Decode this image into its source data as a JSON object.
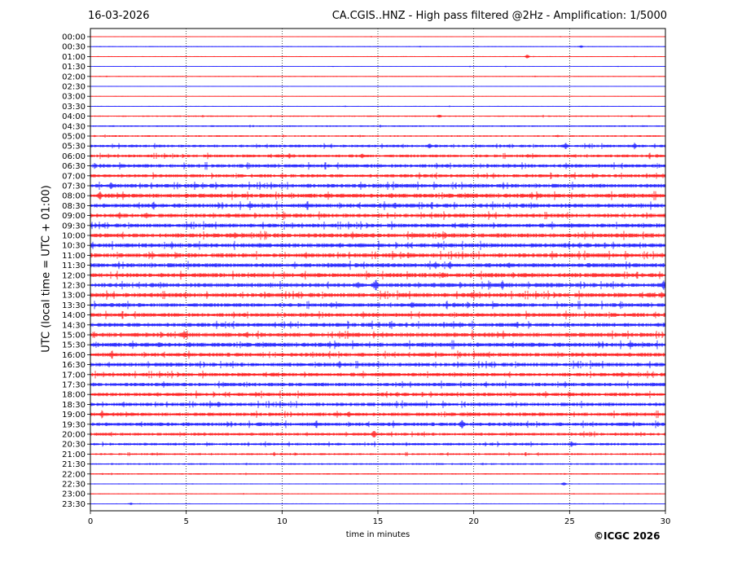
{
  "header": {
    "date": "16-03-2026",
    "title": "CA.CGIS..HNZ - High pass filtered @2Hz - Amplification: 1/5000"
  },
  "footer": {
    "copyright": "©ICGC 2026"
  },
  "chart_data": {
    "type": "line",
    "subtype": "helicorder",
    "title": "CA.CGIS..HNZ - High pass filtered @2Hz - Amplification: 1/5000",
    "xlabel": "time in minutes",
    "ylabel": "UTC (local time = UTC + 01:00)",
    "xlim": [
      0,
      30
    ],
    "x_ticks": [
      0,
      5,
      10,
      15,
      20,
      25,
      30
    ],
    "x_gridlines": [
      5,
      10,
      15,
      20,
      25
    ],
    "row_labels": [
      "00:00",
      "00:30",
      "01:00",
      "01:30",
      "02:00",
      "02:30",
      "03:00",
      "03:30",
      "04:00",
      "04:30",
      "05:00",
      "05:30",
      "06:00",
      "06:30",
      "07:00",
      "07:30",
      "08:00",
      "08:30",
      "09:00",
      "09:30",
      "10:00",
      "10:30",
      "11:00",
      "11:30",
      "12:00",
      "12:30",
      "13:00",
      "13:30",
      "14:00",
      "14:30",
      "15:00",
      "15:30",
      "16:00",
      "16:30",
      "17:00",
      "17:30",
      "18:00",
      "18:30",
      "19:00",
      "19:30",
      "20:00",
      "20:30",
      "21:00",
      "21:30",
      "22:00",
      "22:30",
      "23:00",
      "23:30"
    ],
    "trace_colors": [
      "#ff0000",
      "#0000ff"
    ],
    "noise_level": [
      0.4,
      0.5,
      0.5,
      0.4,
      0.5,
      0.4,
      0.4,
      0.5,
      0.8,
      0.9,
      1.0,
      1.6,
      1.8,
      2.2,
      2.0,
      2.4,
      2.6,
      2.6,
      2.4,
      2.4,
      2.6,
      2.6,
      2.6,
      2.6,
      2.6,
      2.6,
      2.6,
      2.4,
      2.4,
      2.4,
      2.6,
      2.6,
      2.4,
      2.4,
      2.2,
      2.2,
      2.2,
      2.2,
      2.2,
      2.2,
      1.8,
      1.6,
      1.2,
      1.0,
      0.8,
      0.6,
      0.5,
      0.5
    ],
    "events": [
      {
        "row": "00:30",
        "minute": 25.6,
        "amplitude": 2
      },
      {
        "row": "01:00",
        "minute": 22.8,
        "amplitude": 3
      },
      {
        "row": "04:00",
        "minute": 18.2,
        "amplitude": 3
      },
      {
        "row": "05:30",
        "minute": 17.7,
        "amplitude": 5
      },
      {
        "row": "05:30",
        "minute": 24.8,
        "amplitude": 5
      },
      {
        "row": "05:30",
        "minute": 28.4,
        "amplitude": 5
      },
      {
        "row": "06:00",
        "minute": 10.4,
        "amplitude": 4
      },
      {
        "row": "06:00",
        "minute": 14.2,
        "amplitude": 4
      },
      {
        "row": "07:30",
        "minute": 1.1,
        "amplitude": 6
      },
      {
        "row": "08:00",
        "minute": 0.5,
        "amplitude": 7
      },
      {
        "row": "08:30",
        "minute": 3.3,
        "amplitude": 6
      },
      {
        "row": "08:30",
        "minute": 15.9,
        "amplitude": 5
      },
      {
        "row": "09:00",
        "minute": 1.5,
        "amplitude": 5
      },
      {
        "row": "10:00",
        "minute": 18.5,
        "amplitude": 5
      },
      {
        "row": "11:00",
        "minute": 16.6,
        "amplitude": 5
      },
      {
        "row": "11:30",
        "minute": 18.0,
        "amplitude": 5
      },
      {
        "row": "12:30",
        "minute": 14.9,
        "amplitude": 8
      },
      {
        "row": "12:30",
        "minute": 21.5,
        "amplitude": 6
      },
      {
        "row": "12:30",
        "minute": 29.9,
        "amplitude": 7
      },
      {
        "row": "13:00",
        "minute": 19.9,
        "amplitude": 6
      },
      {
        "row": "13:00",
        "minute": 29.8,
        "amplitude": 6
      },
      {
        "row": "13:30",
        "minute": 16.8,
        "amplitude": 5
      },
      {
        "row": "15:00",
        "minute": 4.9,
        "amplitude": 6
      },
      {
        "row": "15:30",
        "minute": 3.6,
        "amplitude": 5
      },
      {
        "row": "16:30",
        "minute": 13.0,
        "amplitude": 5
      },
      {
        "row": "18:30",
        "minute": 6.7,
        "amplitude": 5
      },
      {
        "row": "19:00",
        "minute": 0.6,
        "amplitude": 6
      },
      {
        "row": "19:00",
        "minute": 13.5,
        "amplitude": 5
      },
      {
        "row": "19:30",
        "minute": 19.4,
        "amplitude": 8
      },
      {
        "row": "20:00",
        "minute": 14.8,
        "amplitude": 6
      },
      {
        "row": "20:30",
        "minute": 25.1,
        "amplitude": 4
      },
      {
        "row": "22:30",
        "minute": 24.7,
        "amplitude": 3
      },
      {
        "row": "23:30",
        "minute": 2.1,
        "amplitude": 2
      }
    ]
  }
}
